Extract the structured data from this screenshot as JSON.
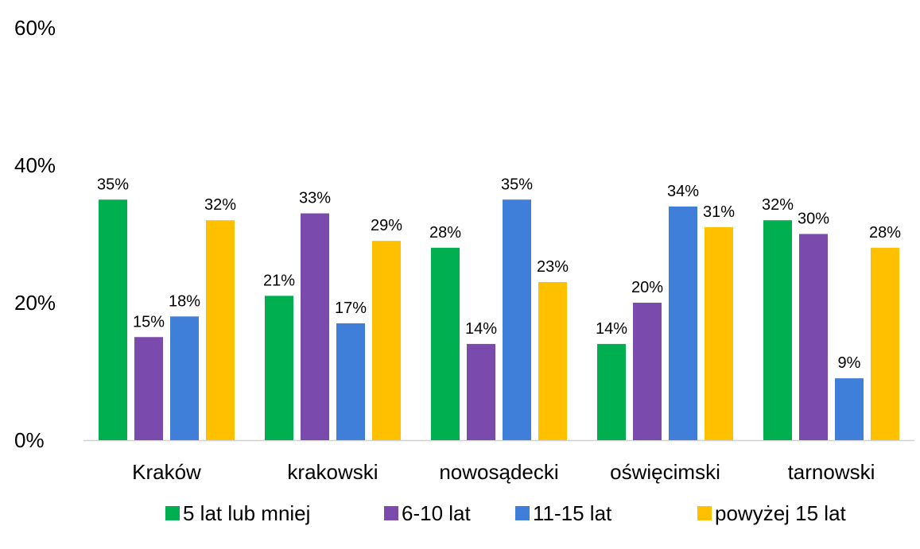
{
  "chart_data": {
    "type": "bar",
    "categories": [
      "Kraków",
      "krakowski",
      "nowosądecki",
      "oświęcimski",
      "tarnowski"
    ],
    "series": [
      {
        "name": "5 lat lub mniej",
        "color": "#00B050",
        "values": [
          35,
          21,
          28,
          14,
          32
        ],
        "labels": [
          "35%",
          "21%",
          "28%",
          "14%",
          "32%"
        ]
      },
      {
        "name": "6-10 lat",
        "color": "#7B4AAD",
        "values": [
          15,
          33,
          14,
          20,
          30
        ],
        "labels": [
          "15%",
          "33%",
          "14%",
          "20%",
          "30%"
        ]
      },
      {
        "name": "11-15 lat",
        "color": "#3F7ED9",
        "values": [
          18,
          17,
          35,
          34,
          9
        ],
        "labels": [
          "18%",
          "17%",
          "35%",
          "34%",
          "9%"
        ]
      },
      {
        "name": "powyżej 15 lat",
        "color": "#FFC000",
        "values": [
          32,
          29,
          23,
          31,
          28
        ],
        "labels": [
          "32%",
          "29%",
          "23%",
          "31%",
          "28%"
        ]
      }
    ],
    "yticks": [
      0,
      20,
      40,
      60
    ],
    "ytick_labels": [
      "0%",
      "20%",
      "40%",
      "60%"
    ],
    "ylim": [
      0,
      60
    ],
    "grid": false,
    "legend_position": "bottom"
  }
}
